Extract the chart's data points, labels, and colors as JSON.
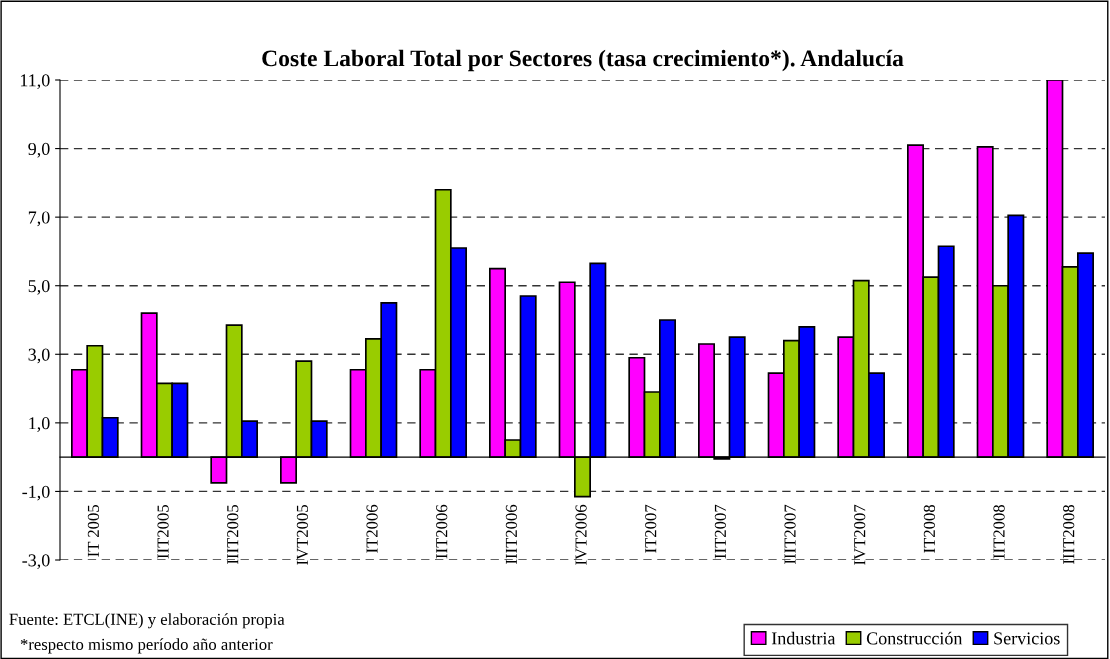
{
  "chart_data": {
    "type": "bar",
    "title": "Coste Laboral Total por Sectores (tasa crecimiento*). Andalucía",
    "categories": [
      "IT 2005",
      "IIT2005",
      "IIIT2005",
      "IVT2005",
      "IT2006",
      "IIT2006",
      "IIIT2006",
      "IVT2006",
      "IT2007",
      "IIT2007",
      "IIIT2007",
      "IVT2007",
      "IT2008",
      "IIT2008",
      "IIIT2008"
    ],
    "series": [
      {
        "name": "Industria",
        "color": "#ff00ff",
        "values": [
          2.55,
          4.2,
          -0.75,
          -0.75,
          2.55,
          2.55,
          5.5,
          5.1,
          2.9,
          3.3,
          2.45,
          3.5,
          9.1,
          9.05,
          11.0
        ]
      },
      {
        "name": "Construcción",
        "color": "#99cc00",
        "values": [
          3.25,
          2.15,
          3.85,
          2.8,
          3.45,
          7.8,
          0.5,
          -1.15,
          1.9,
          -0.05,
          3.4,
          5.15,
          5.25,
          5.0,
          5.55
        ]
      },
      {
        "name": "Servicios",
        "color": "#0000ff",
        "values": [
          1.15,
          2.15,
          1.05,
          1.05,
          4.5,
          6.1,
          4.7,
          5.65,
          4.0,
          3.5,
          3.8,
          2.45,
          6.15,
          7.05,
          5.95
        ]
      }
    ],
    "ylim": [
      -3.0,
      11.0
    ],
    "yticks": [
      {
        "value": -3,
        "label": "-3,0"
      },
      {
        "value": -1,
        "label": "-1,0"
      },
      {
        "value": 1,
        "label": "1,0"
      },
      {
        "value": 3,
        "label": "3,0"
      },
      {
        "value": 5,
        "label": "5,0"
      },
      {
        "value": 7,
        "label": "7,0"
      },
      {
        "value": 9,
        "label": "9,0"
      },
      {
        "value": 11,
        "label": "11,0"
      }
    ],
    "grid": "y",
    "legend": "bottom right",
    "annotations": [
      "Fuente: ETCL(INE) y elaboración propia",
      "*respecto mismo período año anterior"
    ]
  }
}
